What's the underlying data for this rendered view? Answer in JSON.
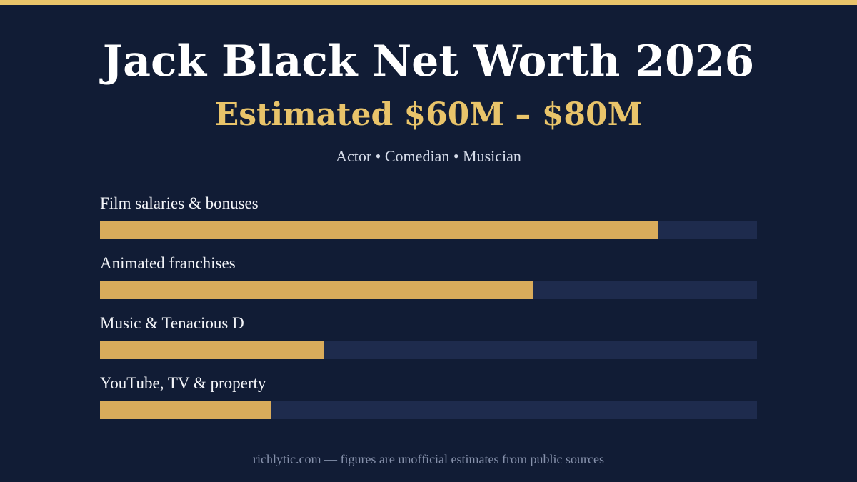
{
  "header": {
    "title": "Jack Black Net Worth 2026",
    "subtitle": "Estimated $60M – $80M",
    "tagline": "Actor • Comedian • Musician"
  },
  "footer": {
    "text": "richlytic.com — figures are unofficial estimates from public sources"
  },
  "colors": {
    "background": "#111c35",
    "accent": "#e9c46a",
    "bar_fill": "#d9ab5b",
    "bar_track": "#1e2b4d"
  },
  "chart_data": {
    "type": "bar",
    "orientation": "horizontal",
    "categories": [
      "Film salaries & bonuses",
      "Animated franchises",
      "Music & Tenacious D",
      "YouTube, TV & property"
    ],
    "values": [
      0.85,
      0.66,
      0.34,
      0.26
    ],
    "value_unit": "fraction of bar track",
    "xlim": [
      0,
      1
    ],
    "grid": false,
    "legend": "none"
  }
}
